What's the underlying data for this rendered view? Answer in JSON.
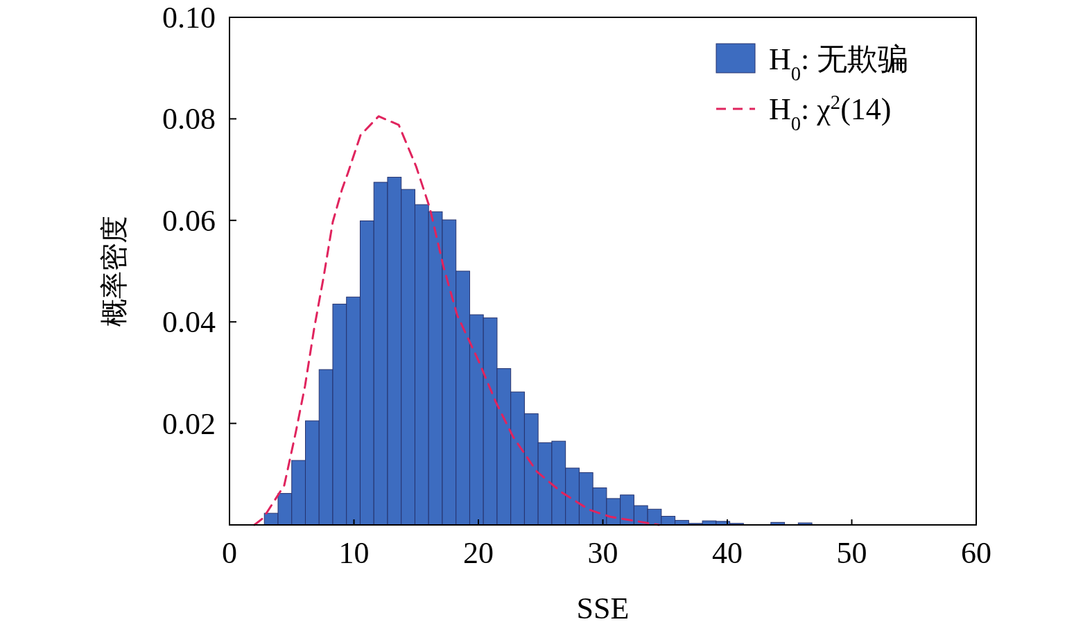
{
  "chart_data": {
    "type": "histogram",
    "xlabel": "SSE",
    "ylabel": "概率密度",
    "xlim": [
      0,
      60
    ],
    "xticks": [
      0,
      10,
      20,
      30,
      40,
      50,
      60
    ],
    "ylim": [
      0,
      0.1
    ],
    "yticks": [
      0.02,
      0.04,
      0.06,
      {
        "value": 0.08,
        "label": "0.08"
      },
      {
        "value": 0.1,
        "label": "0.10"
      }
    ],
    "legend": "top right",
    "bins": [
      2.8,
      3.9,
      5.0,
      6.1,
      7.2,
      8.3,
      9.4,
      10.5,
      11.6,
      12.7,
      13.8,
      14.9,
      16.0,
      17.1,
      18.2,
      19.3,
      20.4,
      21.5,
      22.6,
      23.7,
      24.8,
      25.9,
      27.0,
      28.1,
      29.2,
      30.3,
      31.4,
      32.5,
      33.6,
      34.7,
      35.8,
      36.9,
      38.0,
      39.1,
      40.2,
      41.3,
      42.4,
      43.5,
      44.6,
      45.7,
      46.8
    ],
    "series": [
      {
        "name": "H$_{0}$: 无欺骗",
        "color": "#3d6cc0",
        "values": [
          0.0023,
          0.0062,
          0.0127,
          0.0205,
          0.0306,
          0.0435,
          0.0449,
          0.0599,
          0.0675,
          0.0685,
          0.0661,
          0.0631,
          0.0617,
          0.0601,
          0.05,
          0.0414,
          0.0408,
          0.0308,
          0.0262,
          0.0219,
          0.0162,
          0.0165,
          0.0112,
          0.0103,
          0.0073,
          0.0052,
          0.0059,
          0.0038,
          0.0031,
          0.0017,
          0.0009,
          0.0003,
          0.0008,
          0.0007,
          0.0003,
          null,
          null,
          0.0005,
          null,
          0.0004
        ]
      },
      {
        "name": "H$_{0}$: χ$^{2}$(14)",
        "type": "line",
        "color": "#e0245e",
        "line_style": "dashed",
        "x": [
          2.0,
          2.73,
          4.4,
          5.33,
          6.07,
          6.81,
          7.56,
          8.3,
          9.04,
          9.51,
          10.53,
          11.98,
          13.6,
          15.0,
          16.1,
          17.2,
          18.3,
          20.0,
          21.4,
          22.8,
          24.7,
          26.7,
          28.9,
          30.6,
          32.8,
          34.5
        ],
        "values": [
          0,
          0.0014,
          0.0078,
          0.0183,
          0.0274,
          0.0388,
          0.0488,
          0.0597,
          0.0661,
          0.0693,
          0.0768,
          0.0805,
          0.0788,
          0.0706,
          0.0624,
          0.0508,
          0.0413,
          0.0324,
          0.0242,
          0.0173,
          0.0105,
          0.0064,
          0.003,
          0.0016,
          0.0007,
          0
        ]
      }
    ]
  }
}
